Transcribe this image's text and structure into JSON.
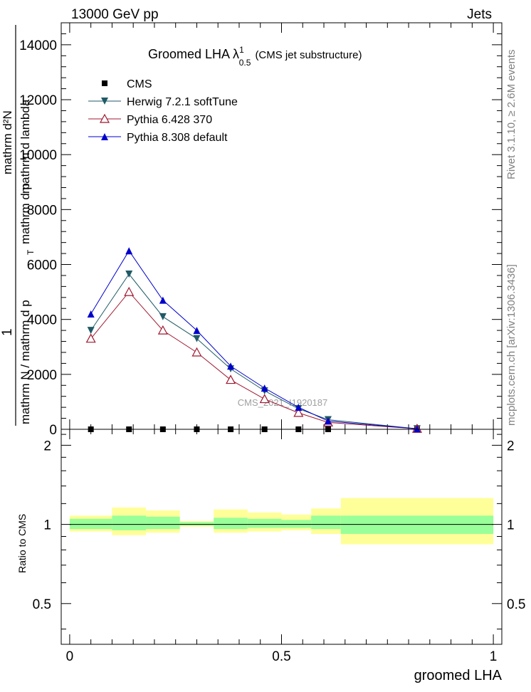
{
  "header": {
    "left": "13000 GeV pp",
    "right": "Jets"
  },
  "side_text": {
    "rivet": "Rivet 3.1.10, ≥ 2.6M events",
    "mcplots": "mcplots.cern.ch [arXiv:1306.3436]"
  },
  "watermark": "CMS_2021_I1920187",
  "chart_data": [
    {
      "type": "line",
      "title": "Groomed LHA  λ",
      "title_sup": "1",
      "title_sub": "0.5",
      "title_suffix": "(CMS jet substructure)",
      "ylabel": {
        "num_left": "1",
        "num_right": "mathrm d²N",
        "den_left": "mathrm N / mathrm d p",
        "den_sub": "T",
        "den_right": "mathrm d p",
        "den_tail": "mathrm d lambda"
      },
      "ylim": [
        0,
        14800
      ],
      "yticks": [
        0,
        2000,
        4000,
        6000,
        8000,
        10000,
        12000,
        14000
      ],
      "yticklabels": [
        "0",
        "2000",
        "4000",
        "6000",
        "8000",
        "10000",
        "12000",
        "14000"
      ],
      "x": [
        0.05,
        0.14,
        0.22,
        0.3,
        0.38,
        0.46,
        0.54,
        0.61,
        0.82
      ],
      "series": [
        {
          "name": "CMS",
          "color": "#000000",
          "marker": "square",
          "values": [
            0,
            0,
            0,
            0,
            0,
            0,
            0,
            0,
            0
          ]
        },
        {
          "name": "Herwig 7.2.1 softTune",
          "color": "#1f5a66",
          "marker": "triangle-down",
          "values": [
            3600,
            5650,
            4100,
            3300,
            2200,
            1400,
            750,
            350,
            20
          ]
        },
        {
          "name": "Pythia 6.428 370",
          "color": "#a01830",
          "marker": "triangle-open",
          "values": [
            3300,
            5000,
            3600,
            2800,
            1800,
            1100,
            600,
            250,
            20
          ]
        },
        {
          "name": "Pythia 8.308 default",
          "color": "#0000cc",
          "marker": "triangle-up",
          "values": [
            4200,
            6500,
            4700,
            3600,
            2300,
            1500,
            800,
            300,
            20
          ]
        }
      ]
    },
    {
      "type": "area",
      "ylabel": "Ratio to CMS",
      "xlabel": "groomed LHA",
      "xlim": [
        -0.02,
        1.02
      ],
      "xticks": [
        0,
        0.5,
        1
      ],
      "xticklabels": [
        "0",
        "0.5",
        "1"
      ],
      "ylim": [
        0.35,
        2.3
      ],
      "yticks": [
        0.5,
        1,
        2
      ],
      "yticklabels": [
        "0.5",
        "1",
        "2"
      ],
      "bins": [
        {
          "lo": 0.0,
          "hi": 0.1,
          "inner": [
            0.96,
            1.05
          ],
          "outer": [
            0.94,
            1.08
          ]
        },
        {
          "lo": 0.1,
          "hi": 0.18,
          "inner": [
            0.95,
            1.08
          ],
          "outer": [
            0.91,
            1.16
          ]
        },
        {
          "lo": 0.18,
          "hi": 0.26,
          "inner": [
            0.96,
            1.07
          ],
          "outer": [
            0.93,
            1.13
          ]
        },
        {
          "lo": 0.26,
          "hi": 0.34,
          "inner": [
            0.99,
            1.02
          ],
          "outer": [
            0.98,
            1.03
          ]
        },
        {
          "lo": 0.34,
          "hi": 0.42,
          "inner": [
            0.96,
            1.06
          ],
          "outer": [
            0.93,
            1.14
          ]
        },
        {
          "lo": 0.42,
          "hi": 0.5,
          "inner": [
            0.97,
            1.05
          ],
          "outer": [
            0.94,
            1.11
          ]
        },
        {
          "lo": 0.5,
          "hi": 0.57,
          "inner": [
            0.97,
            1.04
          ],
          "outer": [
            0.95,
            1.09
          ]
        },
        {
          "lo": 0.57,
          "hi": 0.64,
          "inner": [
            0.96,
            1.08
          ],
          "outer": [
            0.92,
            1.15
          ]
        },
        {
          "lo": 0.64,
          "hi": 1.0,
          "inner": [
            0.92,
            1.08
          ],
          "outer": [
            0.84,
            1.26
          ]
        }
      ],
      "band_colors": {
        "outer": "#ffff99",
        "inner": "#99ff99"
      }
    }
  ]
}
